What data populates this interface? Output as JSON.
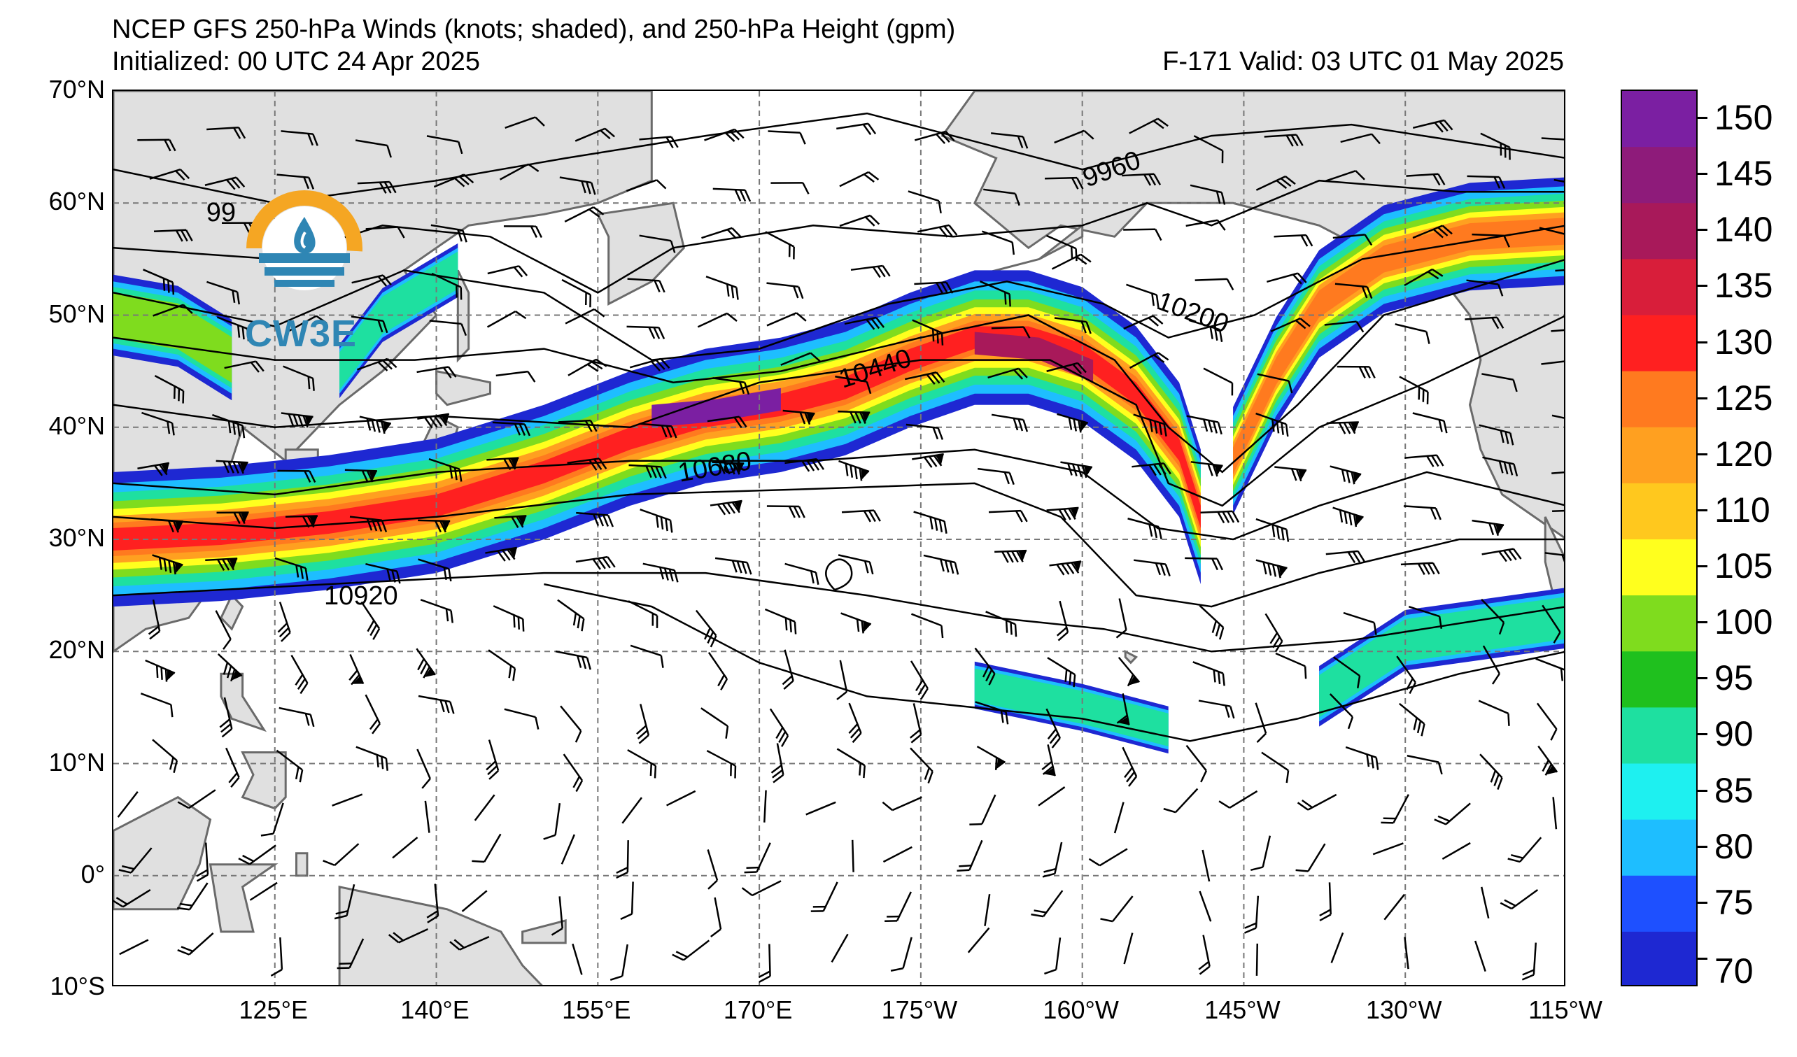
{
  "header": {
    "title": "NCEP GFS 250-hPa Winds (knots; shaded), and 250-hPa Height (gpm)",
    "initialized": "Initialized: 00 UTC 24 Apr 2025",
    "valid": "F-171  Valid: 03 UTC 01 May 2025"
  },
  "logo": {
    "text": "CW3E",
    "colors": {
      "ring": "#f5a623",
      "waves": "#2f86b4",
      "drop": "#2f86b4"
    }
  },
  "map": {
    "lat_labels": [
      "70°N",
      "60°N",
      "50°N",
      "40°N",
      "30°N",
      "20°N",
      "10°N",
      "0°",
      "10°S"
    ],
    "lon_labels": [
      "125°E",
      "140°E",
      "155°E",
      "170°E",
      "175°W",
      "160°W",
      "145°W",
      "130°W",
      "115°W"
    ],
    "lat_range": [
      -10,
      70
    ],
    "lon_range_east": [
      110,
      245
    ],
    "contour_labels": [
      "9960",
      "10200",
      "10440",
      "10680",
      "10920",
      "99"
    ],
    "land_color": "#e0e0e0",
    "coast_color": "#6a6a6a",
    "grid": "dashed"
  },
  "colorbar": {
    "ticks": [
      "150",
      "145",
      "140",
      "135",
      "130",
      "125",
      "120",
      "110",
      "105",
      "100",
      "95",
      "90",
      "85",
      "80",
      "75",
      "70"
    ],
    "colors": [
      "#7b1fa2",
      "#8e1b7a",
      "#a8195a",
      "#d81e3a",
      "#ff2020",
      "#ff7a1f",
      "#ffa020",
      "#ffc81e",
      "#ffff1e",
      "#7fdc1e",
      "#1fc01e",
      "#1ee0a0",
      "#1ef0f0",
      "#1ebeff",
      "#1e50ff",
      "#1e28d2"
    ]
  }
}
